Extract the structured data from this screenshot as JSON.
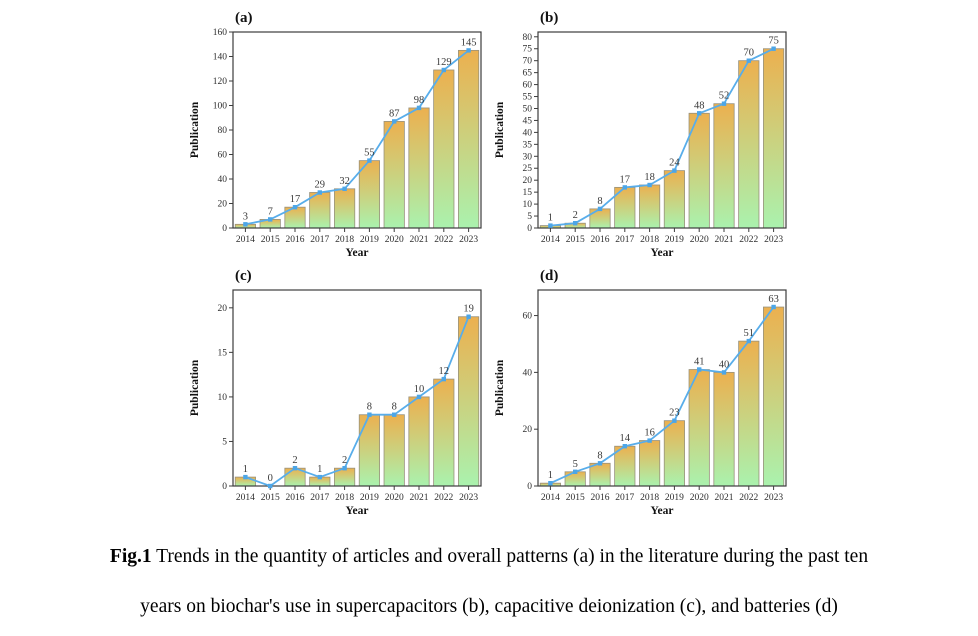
{
  "figure": {
    "caption_prefix": "Fig.1",
    "caption_line1": "Trends in the quantity of articles and overall patterns (a) in the literature during the past ten",
    "caption_line2": "years on biochar's use in supercapacitors (b), capacitive deionization (c), and batteries (d)"
  },
  "style": {
    "bar_top_color": "#ECB04F",
    "bar_bottom_color": "#AAF2AE",
    "bar_stroke_color": "#97917B",
    "line_color": "#58ADEA",
    "marker_color": "#4DA6E7",
    "axis_color": "#3C3C3C",
    "text_color": "#2E2E2E"
  },
  "chart_data": [
    {
      "type": "bar",
      "title": "(a)",
      "xlabel": "Year",
      "ylabel": "Publication",
      "categories": [
        "2014",
        "2015",
        "2016",
        "2017",
        "2018",
        "2019",
        "2020",
        "2021",
        "2022",
        "2023"
      ],
      "values": [
        3,
        7,
        17,
        29,
        32,
        55,
        87,
        98,
        129,
        145
      ],
      "ylim": [
        0,
        160
      ],
      "ytick_step": 20,
      "ytick_max": 160,
      "grid": false,
      "legend": "none",
      "overlay": "line-with-square-markers"
    },
    {
      "type": "bar",
      "title": "(b)",
      "xlabel": "Year",
      "ylabel": "Publication",
      "categories": [
        "2014",
        "2015",
        "2016",
        "2017",
        "2018",
        "2019",
        "2020",
        "2021",
        "2022",
        "2023"
      ],
      "values": [
        1,
        2,
        8,
        17,
        18,
        24,
        48,
        52,
        70,
        75
      ],
      "ylim": [
        0,
        82
      ],
      "ytick_step": 5,
      "ytick_max": 80,
      "grid": false,
      "legend": "none",
      "overlay": "line-with-square-markers"
    },
    {
      "type": "bar",
      "title": "(c)",
      "xlabel": "Year",
      "ylabel": "Publication",
      "categories": [
        "2014",
        "2015",
        "2016",
        "2017",
        "2018",
        "2019",
        "2020",
        "2021",
        "2022",
        "2023"
      ],
      "values": [
        1,
        0,
        2,
        1,
        2,
        8,
        8,
        10,
        12,
        19
      ],
      "ylim": [
        0,
        22
      ],
      "ytick_step": 5,
      "ytick_max": 20,
      "grid": false,
      "legend": "none",
      "overlay": "line-with-square-markers"
    },
    {
      "type": "bar",
      "title": "(d)",
      "xlabel": "Year",
      "ylabel": "Publication",
      "categories": [
        "2014",
        "2015",
        "2016",
        "2017",
        "2018",
        "2019",
        "2020",
        "2021",
        "2022",
        "2023"
      ],
      "values": [
        1,
        5,
        8,
        14,
        16,
        23,
        41,
        40,
        51,
        63
      ],
      "ylim": [
        0,
        69
      ],
      "ytick_step": 20,
      "ytick_max": 60,
      "grid": false,
      "legend": "none",
      "overlay": "line-with-square-markers"
    }
  ]
}
